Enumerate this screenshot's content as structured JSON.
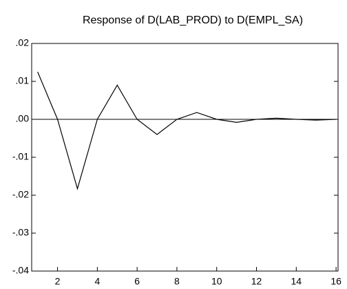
{
  "chart_data": {
    "type": "line",
    "title": "Response of D(LAB_PROD) to D(EMPL_SA)",
    "x": [
      1,
      2,
      3,
      4,
      5,
      6,
      7,
      8,
      9,
      10,
      11,
      12,
      13,
      14,
      15,
      16
    ],
    "series": [
      {
        "color": "#000000",
        "values": [
          0.0125,
          0.0,
          -0.0183,
          0.0,
          0.009,
          0.0,
          -0.004,
          0.0,
          0.0018,
          0.0,
          -0.0008,
          0.0,
          0.0003,
          0.0,
          -0.0002,
          0.0
        ]
      }
    ],
    "xlim": [
      0.7,
      16.1
    ],
    "xticks": [
      2,
      4,
      6,
      8,
      10,
      12,
      14,
      16
    ],
    "ylim": [
      -0.04,
      0.02
    ],
    "yticks": [
      {
        "value": -0.04,
        "label": "-.04"
      },
      {
        "value": -0.03,
        "label": "-.03"
      },
      {
        "value": -0.02,
        "label": "-.02"
      },
      {
        "value": -0.01,
        "label": "-.01"
      },
      {
        "value": 0,
        "label": ".00"
      },
      {
        "value": 0.01,
        "label": ".01"
      },
      {
        "value": 0.02,
        "label": ".02"
      }
    ],
    "zero_line": true
  }
}
